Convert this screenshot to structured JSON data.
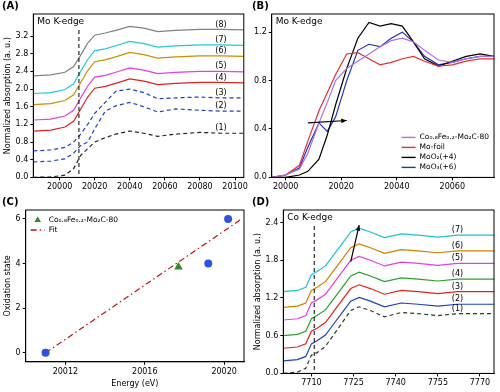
{
  "chart_data": [
    {
      "type": "line",
      "panel": "(A)",
      "title": "Mo K-edge",
      "y_label": "Normalized absorption (a. u.)",
      "xlim": [
        19985,
        20105
      ],
      "xticks": [
        20000,
        20020,
        20040,
        20060,
        20080,
        20100
      ],
      "ylim": [
        0,
        3.7
      ],
      "yticks": [
        {
          "value": 0,
          "label": "0.0"
        },
        0.4,
        0.8,
        1.2,
        1.6,
        {
          "value": 2,
          "label": "2.0"
        },
        2.4,
        2.8,
        3.2
      ],
      "grid": false,
      "legend": "inline",
      "reference_x": [
        20011
      ],
      "x": [
        19985,
        19995,
        20003,
        20008,
        20012,
        20016,
        20020,
        20026,
        20032,
        20040,
        20048,
        20056,
        20066,
        20080,
        20092,
        20105
      ],
      "series": [
        {
          "name": "(1)",
          "color": "#222222",
          "line_style": "dashed",
          "values": [
            0.0,
            0.01,
            0.05,
            0.2,
            0.5,
            0.65,
            0.8,
            0.9,
            0.98,
            1.05,
            1.0,
            0.93,
            0.98,
            1.02,
            1.0,
            1.0
          ]
        },
        {
          "name": "(2)",
          "color": "#2040c0",
          "line_style": "dashed",
          "values": [
            0.35,
            0.37,
            0.42,
            0.55,
            0.72,
            0.8,
            1.1,
            1.5,
            1.62,
            1.7,
            1.6,
            1.48,
            1.55,
            1.52,
            1.5,
            1.5
          ]
        },
        {
          "name": "(3)",
          "color": "#2040c0",
          "line_style": "dashed",
          "values": [
            0.6,
            0.62,
            0.68,
            0.8,
            0.98,
            1.2,
            1.45,
            1.7,
            1.95,
            2.0,
            1.92,
            1.78,
            1.8,
            1.82,
            1.8,
            1.8
          ]
        },
        {
          "name": "(4)",
          "color": "#e02020",
          "line_style": "solid",
          "values": [
            1.05,
            1.07,
            1.14,
            1.27,
            1.55,
            1.82,
            2.02,
            2.06,
            2.13,
            2.23,
            2.18,
            2.1,
            2.13,
            2.15,
            2.15,
            2.14
          ]
        },
        {
          "name": "(5)",
          "color": "#e040e0",
          "line_style": "solid",
          "values": [
            1.3,
            1.32,
            1.39,
            1.52,
            1.8,
            2.07,
            2.27,
            2.31,
            2.38,
            2.48,
            2.43,
            2.35,
            2.38,
            2.4,
            2.4,
            2.39
          ]
        },
        {
          "name": "(6)",
          "color": "#c89000",
          "line_style": "solid",
          "values": [
            1.65,
            1.67,
            1.74,
            1.87,
            2.15,
            2.42,
            2.62,
            2.66,
            2.73,
            2.83,
            2.78,
            2.7,
            2.73,
            2.75,
            2.75,
            2.74
          ]
        },
        {
          "name": "(7)",
          "color": "#20c8d8",
          "line_style": "solid",
          "values": [
            1.9,
            1.92,
            1.99,
            2.12,
            2.4,
            2.67,
            2.87,
            2.91,
            2.98,
            3.08,
            3.03,
            2.95,
            2.98,
            3.0,
            3.0,
            2.99
          ]
        },
        {
          "name": "(8)",
          "color": "#808080",
          "line_style": "solid",
          "values": [
            2.3,
            2.32,
            2.38,
            2.51,
            2.77,
            3.04,
            3.22,
            3.27,
            3.33,
            3.42,
            3.38,
            3.3,
            3.33,
            3.35,
            3.35,
            3.34
          ]
        }
      ]
    },
    {
      "type": "line",
      "panel": "(B)",
      "title": "Mo K-edge",
      "xlim": [
        19995,
        20075
      ],
      "xticks": [
        20000,
        20020,
        20040,
        20060
      ],
      "ylim": [
        0,
        1.35
      ],
      "yticks": [
        {
          "value": 0,
          "label": "0.0"
        },
        0.4,
        0.8,
        1.2
      ],
      "grid": false,
      "legend": "lower right",
      "arrows": [
        {
          "x": [
            20008,
            20022
          ],
          "y": [
            0.45,
            0.47
          ]
        }
      ],
      "x": [
        19995,
        20000,
        20005,
        20008,
        20012,
        20015,
        20018,
        20022,
        20026,
        20030,
        20034,
        20038,
        20042,
        20046,
        20050,
        20055,
        20060,
        20065,
        20070,
        20075
      ],
      "series": [
        {
          "name": "Co₀.₈Fe₀.₂-Mo₂C-80",
          "color": "#b070e0",
          "line_style": "solid",
          "values": [
            0,
            0.02,
            0.07,
            0.2,
            0.45,
            0.62,
            0.8,
            0.9,
            0.96,
            1.02,
            1.08,
            1.13,
            1.15,
            1.12,
            1.05,
            0.97,
            0.95,
            0.98,
            1.0,
            1.0
          ]
        },
        {
          "name": "Mo-foil",
          "color": "#e03030",
          "line_style": "solid",
          "values": [
            0,
            0.02,
            0.1,
            0.3,
            0.55,
            0.7,
            0.85,
            1.02,
            1.03,
            0.98,
            0.93,
            0.95,
            0.98,
            1.0,
            0.96,
            0.92,
            0.93,
            0.96,
            0.98,
            0.98
          ]
        },
        {
          "name": "MoO₂(+4)",
          "color": "#000000",
          "line_style": "solid",
          "values": [
            0,
            0,
            0.02,
            0.05,
            0.15,
            0.35,
            0.6,
            0.9,
            1.15,
            1.28,
            1.25,
            1.27,
            1.25,
            1.12,
            0.98,
            0.92,
            0.96,
            1.0,
            1.02,
            1.0
          ]
        },
        {
          "name": "MoO₃(+6)",
          "color": "#2030c0",
          "line_style": "solid",
          "values": [
            0,
            0.02,
            0.08,
            0.25,
            0.45,
            0.38,
            0.5,
            0.8,
            1.05,
            1.1,
            1.08,
            1.15,
            1.2,
            1.12,
            1.0,
            0.93,
            0.95,
            0.98,
            1.0,
            1.0
          ]
        }
      ]
    },
    {
      "type": "scatter",
      "panel": "(C)",
      "x_label": "Energy (eV)",
      "y_label": "Oxidation state",
      "xlim": [
        20010,
        20021
      ],
      "xticks": [
        20012,
        20016,
        20020
      ],
      "ylim": [
        -0.4,
        6.4
      ],
      "yticks": [
        0,
        2,
        4,
        6
      ],
      "grid": false,
      "legend": "upper left",
      "series": [
        {
          "color": "#3050e0",
          "marker": "circle",
          "line_style": "none",
          "x": [
            20011,
            20019.2,
            20020.2
          ],
          "values": [
            0,
            4,
            6
          ]
        },
        {
          "name": "Co₀.₈Fe₀.₂-Mo₂C-80",
          "color": "#2e8b2e",
          "marker": "triangle",
          "line_style": "none",
          "x": [
            20017.7
          ],
          "values": [
            3.85
          ]
        },
        {
          "name": "Fit",
          "color": "#c01010",
          "marker": "none",
          "line_style": "dashdot",
          "x": [
            20011,
            20020.8
          ],
          "values": [
            0,
            5.95
          ]
        }
      ]
    },
    {
      "type": "line",
      "panel": "(D)",
      "title": "Co K-edge",
      "y_label": "Normalized absorption (a. u.)",
      "xlim": [
        7700,
        7775
      ],
      "xticks": [
        7710,
        7725,
        7740,
        7755,
        7770
      ],
      "ylim": [
        0,
        2.6
      ],
      "yticks": [
        {
          "value": 0,
          "label": "0.0"
        },
        0.6,
        1.2,
        1.8,
        2.4
      ],
      "grid": false,
      "legend": "inline",
      "reference_x": [
        7711
      ],
      "arrows": [
        {
          "x": [
            7724,
            7727
          ],
          "y": [
            1.78,
            2.36
          ]
        }
      ],
      "x": [
        7700,
        7705,
        7708,
        7710,
        7712,
        7715,
        7718,
        7721,
        7724,
        7727,
        7731,
        7736,
        7742,
        7748,
        7755,
        7762,
        7770,
        7775
      ],
      "series": [
        {
          "name": "(1)",
          "color": "#333333",
          "line_style": "dashed",
          "values": [
            0,
            0.02,
            0.08,
            0.29,
            0.33,
            0.43,
            0.62,
            0.81,
            1.0,
            1.06,
            1.0,
            0.9,
            0.97,
            0.95,
            0.92,
            0.95,
            0.95,
            0.95
          ]
        },
        {
          "name": "(2)",
          "color": "#1f3fbf",
          "line_style": "solid",
          "values": [
            0.2,
            0.22,
            0.27,
            0.47,
            0.52,
            0.61,
            0.79,
            0.97,
            1.15,
            1.21,
            1.15,
            1.06,
            1.12,
            1.1,
            1.07,
            1.1,
            1.1,
            1.1
          ]
        },
        {
          "name": "(3)",
          "color": "#e02020",
          "line_style": "solid",
          "values": [
            0.4,
            0.42,
            0.47,
            0.67,
            0.72,
            0.81,
            0.99,
            1.17,
            1.35,
            1.41,
            1.35,
            1.26,
            1.32,
            1.3,
            1.27,
            1.3,
            1.3,
            1.3
          ]
        },
        {
          "name": "(4)",
          "color": "#2e9e2e",
          "line_style": "solid",
          "values": [
            0.6,
            0.62,
            0.67,
            0.87,
            0.92,
            1.01,
            1.19,
            1.37,
            1.55,
            1.61,
            1.55,
            1.46,
            1.52,
            1.5,
            1.47,
            1.5,
            1.5,
            1.5
          ]
        },
        {
          "name": "(5)",
          "color": "#e040e0",
          "line_style": "solid",
          "values": [
            0.85,
            0.87,
            0.92,
            1.12,
            1.17,
            1.26,
            1.44,
            1.62,
            1.8,
            1.86,
            1.8,
            1.71,
            1.77,
            1.75,
            1.72,
            1.75,
            1.75,
            1.75
          ]
        },
        {
          "name": "(6)",
          "color": "#d08000",
          "line_style": "solid",
          "values": [
            1.05,
            1.07,
            1.12,
            1.32,
            1.37,
            1.46,
            1.64,
            1.82,
            2.0,
            2.06,
            2.0,
            1.91,
            1.97,
            1.95,
            1.92,
            1.95,
            1.95,
            1.95
          ]
        },
        {
          "name": "(7)",
          "color": "#20c0d0",
          "line_style": "solid",
          "values": [
            1.3,
            1.32,
            1.37,
            1.57,
            1.62,
            1.71,
            1.89,
            2.07,
            2.25,
            2.31,
            2.25,
            2.16,
            2.22,
            2.2,
            2.17,
            2.2,
            2.2,
            2.2
          ]
        }
      ]
    }
  ]
}
